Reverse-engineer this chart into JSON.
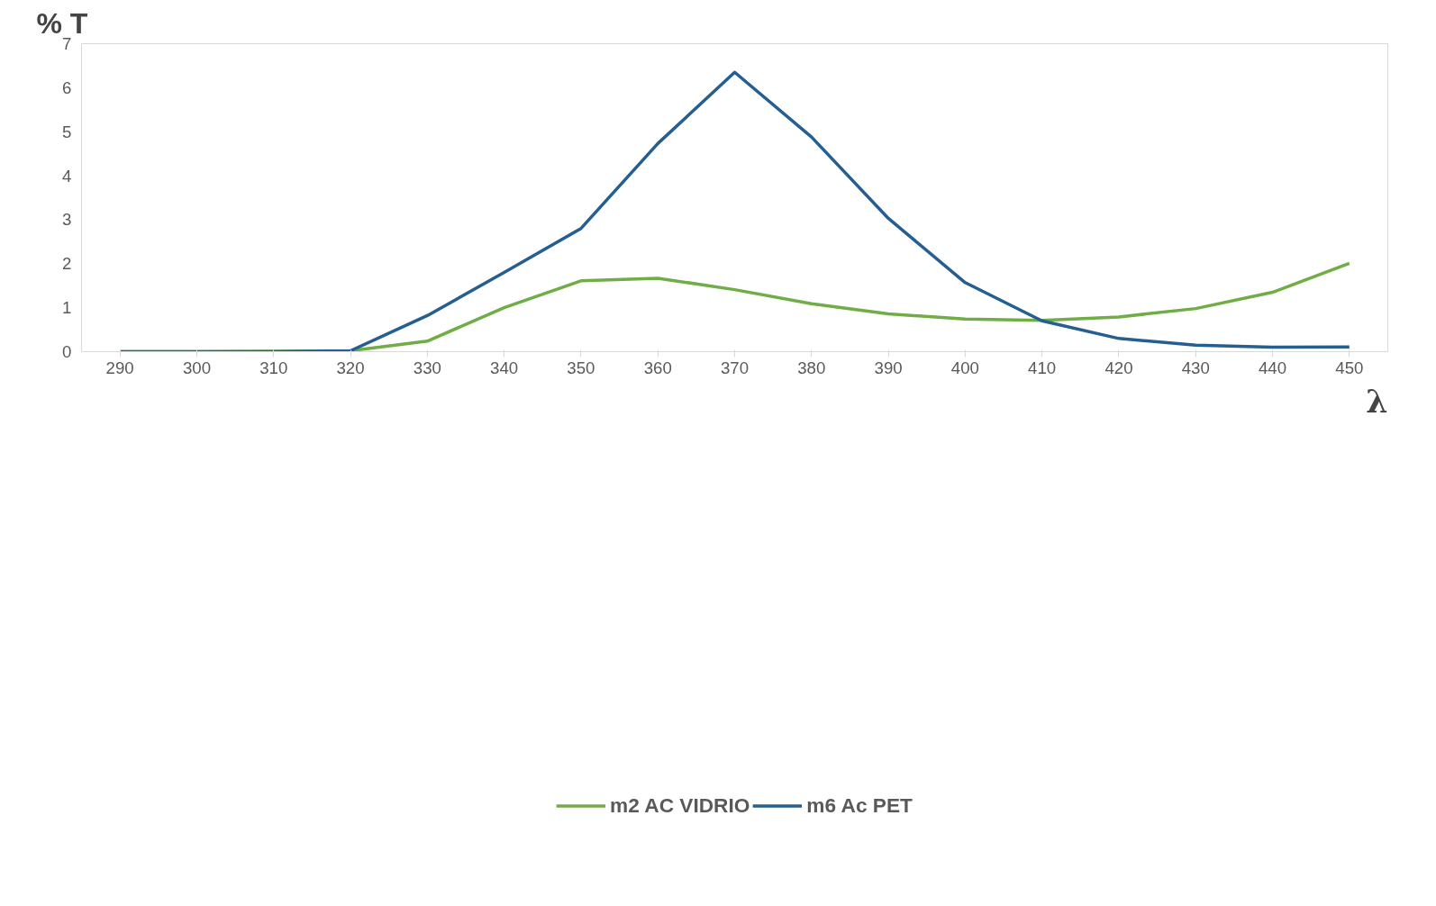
{
  "chart_data": {
    "type": "line",
    "ylabel": "% T",
    "xlabel": "λ",
    "categories": [
      "290",
      "300",
      "310",
      "320",
      "330",
      "340",
      "350",
      "360",
      "370",
      "380",
      "390",
      "400",
      "410",
      "420",
      "430",
      "440",
      "450"
    ],
    "series": [
      {
        "name": "m2 AC VIDRIO",
        "color": "#70ad47",
        "values": [
          0,
          0,
          0.01,
          0.02,
          0.24,
          1.0,
          1.61,
          1.67,
          1.41,
          1.09,
          0.86,
          0.74,
          0.71,
          0.79,
          0.98,
          1.35,
          2.01
        ]
      },
      {
        "name": "m6 Ac PET",
        "color": "#255e91",
        "values": [
          0,
          0,
          0,
          0.02,
          0.82,
          1.8,
          2.8,
          4.73,
          6.35,
          4.88,
          3.03,
          1.57,
          0.7,
          0.3,
          0.15,
          0.1,
          0.11
        ]
      }
    ],
    "ylim": [
      0,
      7
    ],
    "yticks": [
      0,
      1,
      2,
      3,
      4,
      5,
      6,
      7
    ],
    "grid": false,
    "legend": "bottom",
    "marker": "none",
    "line_style": "solid"
  }
}
